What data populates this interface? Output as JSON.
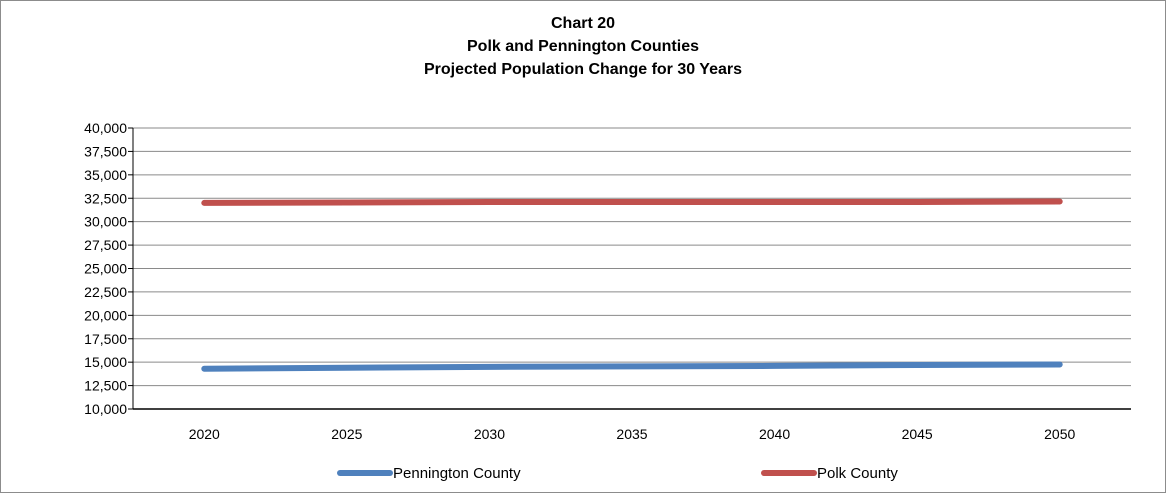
{
  "chart_data": {
    "type": "line",
    "title": [
      "Chart 20",
      "Polk and Pennington Counties",
      "Projected Population Change for 30 Years"
    ],
    "x": [
      2020,
      2025,
      2030,
      2035,
      2040,
      2045,
      2050
    ],
    "ylim": [
      10000,
      40000
    ],
    "yticks": [
      10000,
      12500,
      15000,
      17500,
      20000,
      22500,
      25000,
      27500,
      30000,
      32500,
      35000,
      37500,
      40000
    ],
    "ytick_labels": [
      "10,000",
      "12,500",
      "15,000",
      "17,500",
      "20,000",
      "22,500",
      "25,000",
      "27,500",
      "30,000",
      "32,500",
      "35,000",
      "37,500",
      "40,000"
    ],
    "grid": true,
    "legend_position": "bottom",
    "series": [
      {
        "name": "Pennington County",
        "color": "#4f81bd",
        "values": [
          14300,
          14400,
          14500,
          14550,
          14600,
          14700,
          14750
        ]
      },
      {
        "name": "Polk County",
        "color": "#c0504d",
        "values": [
          32000,
          32050,
          32100,
          32100,
          32100,
          32100,
          32150
        ]
      }
    ]
  }
}
